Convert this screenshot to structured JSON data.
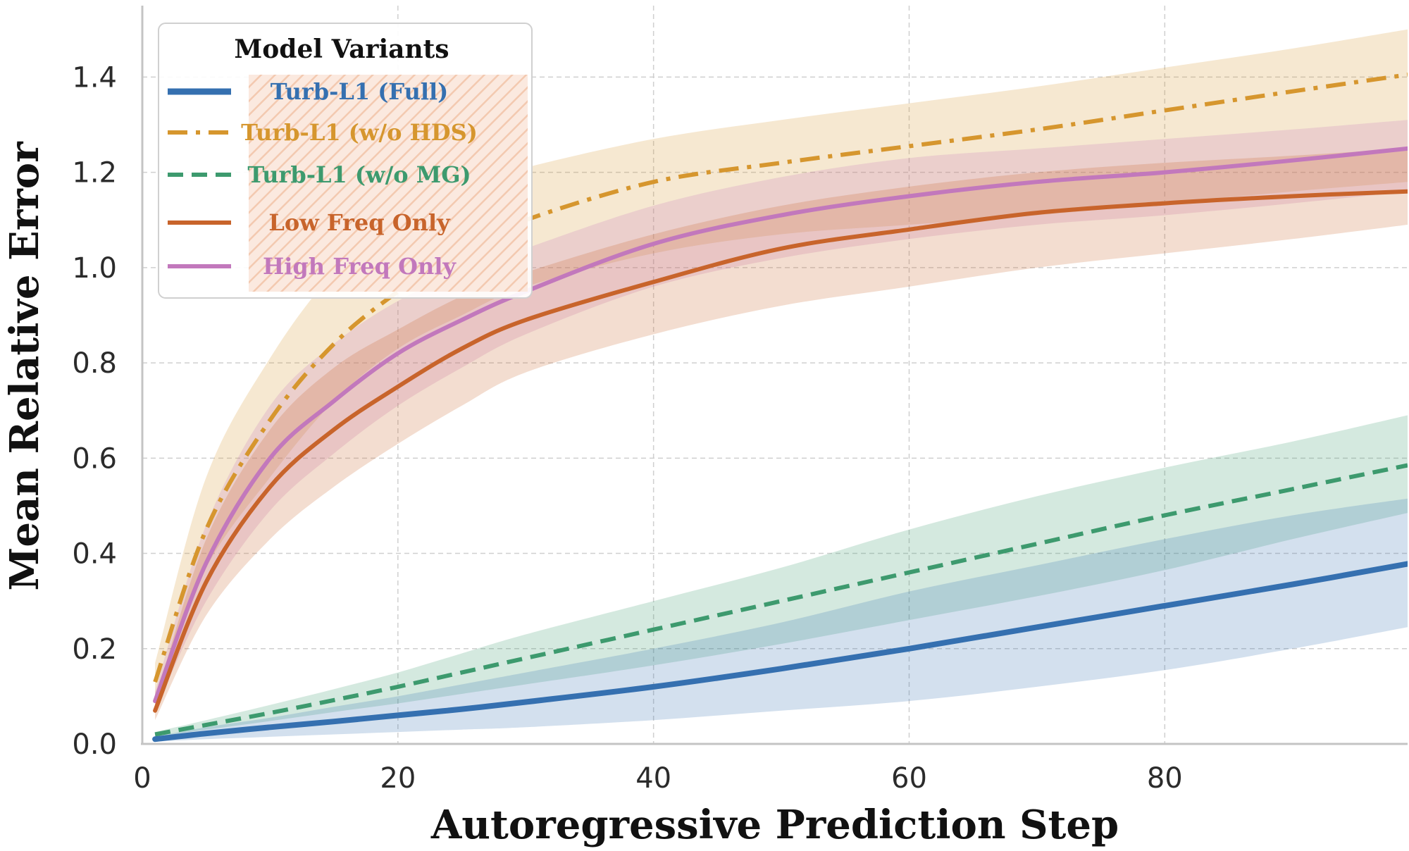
{
  "chart_data": {
    "type": "line",
    "title": "",
    "xlabel": "Autoregressive Prediction Step",
    "ylabel": "Mean Relative Error",
    "xlim": [
      0,
      99
    ],
    "ylim": [
      0,
      1.55
    ],
    "xticks": [
      0,
      20,
      40,
      60,
      80
    ],
    "xtick_labels": [
      "0",
      "20",
      "40",
      "60",
      "80"
    ],
    "yticks": [
      0.0,
      0.2,
      0.4,
      0.6,
      0.8,
      1.0,
      1.2,
      1.4
    ],
    "ytick_labels": [
      "0.0",
      "0.2",
      "0.4",
      "0.6",
      "0.8",
      "1.0",
      "1.2",
      "1.4"
    ],
    "grid": true,
    "legend_title": "Model Variants",
    "legend_position": "top-left",
    "x": [
      1,
      5,
      10,
      15,
      20,
      25,
      30,
      40,
      50,
      60,
      70,
      80,
      90,
      99
    ],
    "series": [
      {
        "name": "Turb-L1 (Full)",
        "color": "#3570b0",
        "style": "solid",
        "mean": [
          0.01,
          0.022,
          0.035,
          0.047,
          0.06,
          0.073,
          0.088,
          0.12,
          0.158,
          0.2,
          0.245,
          0.29,
          0.335,
          0.378
        ],
        "lower": [
          0.005,
          0.01,
          0.015,
          0.02,
          0.025,
          0.03,
          0.035,
          0.05,
          0.07,
          0.09,
          0.12,
          0.155,
          0.2,
          0.245
        ],
        "upper": [
          0.015,
          0.035,
          0.055,
          0.078,
          0.1,
          0.125,
          0.15,
          0.2,
          0.255,
          0.32,
          0.375,
          0.43,
          0.48,
          0.515
        ]
      },
      {
        "name": "Turb-L1 (w/o HDS)",
        "color": "#d6962e",
        "style": "dashdot",
        "mean": [
          0.13,
          0.45,
          0.68,
          0.84,
          0.95,
          1.04,
          1.1,
          1.18,
          1.22,
          1.255,
          1.29,
          1.33,
          1.37,
          1.405
        ],
        "lower": [
          0.1,
          0.37,
          0.56,
          0.72,
          0.83,
          0.9,
          0.96,
          1.03,
          1.07,
          1.09,
          1.11,
          1.135,
          1.16,
          1.18
        ],
        "upper": [
          0.17,
          0.56,
          0.81,
          0.99,
          1.1,
          1.17,
          1.21,
          1.27,
          1.31,
          1.345,
          1.38,
          1.42,
          1.46,
          1.5
        ]
      },
      {
        "name": "Turb-L1 (w/o MG)",
        "color": "#3d9a6e",
        "style": "dashed",
        "mean": [
          0.02,
          0.04,
          0.065,
          0.092,
          0.12,
          0.15,
          0.18,
          0.24,
          0.3,
          0.36,
          0.42,
          0.48,
          0.535,
          0.585
        ],
        "lower": [
          0.015,
          0.03,
          0.048,
          0.067,
          0.085,
          0.105,
          0.125,
          0.165,
          0.21,
          0.26,
          0.31,
          0.365,
          0.43,
          0.485
        ],
        "upper": [
          0.025,
          0.05,
          0.082,
          0.115,
          0.15,
          0.19,
          0.23,
          0.3,
          0.37,
          0.45,
          0.52,
          0.58,
          0.635,
          0.69
        ]
      },
      {
        "name": "Low Freq Only",
        "color": "#c8642b",
        "style": "solid",
        "mean": [
          0.07,
          0.34,
          0.54,
          0.66,
          0.75,
          0.83,
          0.89,
          0.97,
          1.04,
          1.08,
          1.115,
          1.135,
          1.15,
          1.16
        ],
        "lower": [
          0.05,
          0.27,
          0.43,
          0.54,
          0.63,
          0.71,
          0.78,
          0.86,
          0.92,
          0.96,
          1.0,
          1.03,
          1.06,
          1.09
        ],
        "upper": [
          0.09,
          0.43,
          0.66,
          0.79,
          0.87,
          0.94,
          0.99,
          1.07,
          1.13,
          1.17,
          1.2,
          1.22,
          1.235,
          1.25
        ]
      },
      {
        "name": "High Freq Only",
        "color": "#c278bc",
        "style": "solid",
        "mean": [
          0.09,
          0.38,
          0.6,
          0.72,
          0.82,
          0.89,
          0.95,
          1.05,
          1.11,
          1.15,
          1.18,
          1.2,
          1.225,
          1.25
        ],
        "lower": [
          0.07,
          0.3,
          0.49,
          0.61,
          0.71,
          0.79,
          0.86,
          0.96,
          1.02,
          1.06,
          1.09,
          1.11,
          1.135,
          1.16
        ],
        "upper": [
          0.11,
          0.46,
          0.71,
          0.84,
          0.93,
          0.99,
          1.04,
          1.13,
          1.19,
          1.23,
          1.25,
          1.27,
          1.29,
          1.31
        ]
      }
    ]
  }
}
